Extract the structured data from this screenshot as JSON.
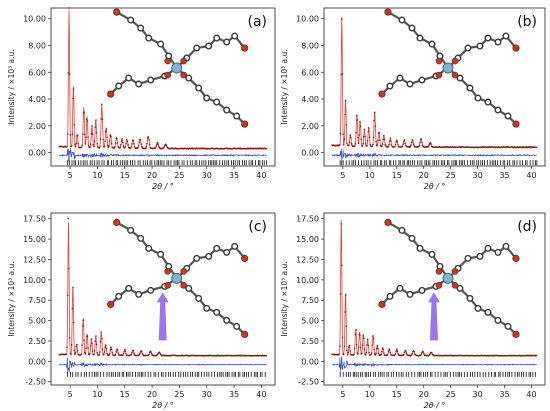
{
  "figure": {
    "colors": {
      "observed": "#8b1a1a",
      "calculated": "#e0443a",
      "difference": "#3a4fd0",
      "bragg": "#111111",
      "atom_carbon": "#3a3a3a",
      "atom_oxygen": "#c0392b",
      "metal": "#7fb4d6",
      "arrow": "#8a5cf0"
    }
  },
  "chart_data": [
    {
      "type": "line",
      "panel_label": "(a)",
      "xlabel": "2θ / °",
      "ylabel": "Intensity / ×10³ a.u.",
      "xlim": [
        1.5,
        42.5
      ],
      "ylim": [
        -1.0,
        10.8
      ],
      "xticks": [
        "5",
        "10",
        "15",
        "20",
        "25",
        "30",
        "35",
        "40"
      ],
      "yticks": [
        "0.00",
        "2.00",
        "4.00",
        "6.00",
        "8.00",
        "10.00"
      ],
      "ytick_values": [
        0,
        2,
        4,
        6,
        8,
        10
      ],
      "background": 0.3,
      "peaks": [
        [
          4.8,
          10.2
        ],
        [
          5.6,
          4.6
        ],
        [
          6.3,
          1.0
        ],
        [
          7.5,
          3.0
        ],
        [
          8.1,
          2.3
        ],
        [
          9.0,
          1.6
        ],
        [
          9.7,
          2.1
        ],
        [
          10.8,
          3.2
        ],
        [
          11.6,
          1.5
        ],
        [
          12.4,
          1.0
        ],
        [
          13.5,
          0.8
        ],
        [
          14.5,
          0.7
        ],
        [
          15.4,
          0.6
        ],
        [
          16.5,
          0.6
        ],
        [
          17.8,
          0.7
        ],
        [
          19.3,
          0.9
        ],
        [
          21.0,
          0.4
        ],
        [
          22.5,
          0.3
        ]
      ],
      "diff_offset": -0.2,
      "bragg_y": -0.75,
      "arrow": false
    },
    {
      "type": "line",
      "panel_label": "(b)",
      "xlabel": "2θ / °",
      "ylabel": "Intensity / ×10³ a.u.",
      "xlim": [
        1.5,
        42.5
      ],
      "ylim": [
        -1.0,
        10.8
      ],
      "xticks": [
        "5",
        "10",
        "15",
        "20",
        "25",
        "30",
        "35",
        "40"
      ],
      "yticks": [
        "0.00",
        "2.00",
        "4.00",
        "6.00",
        "8.00",
        "10.00"
      ],
      "ytick_values": [
        0,
        2,
        4,
        6,
        8,
        10
      ],
      "background": 0.4,
      "peaks": [
        [
          4.8,
          9.6
        ],
        [
          5.5,
          3.4
        ],
        [
          6.4,
          0.8
        ],
        [
          7.6,
          2.4
        ],
        [
          8.2,
          1.9
        ],
        [
          9.0,
          1.2
        ],
        [
          9.8,
          1.4
        ],
        [
          10.9,
          2.6
        ],
        [
          11.7,
          1.1
        ],
        [
          12.6,
          0.8
        ],
        [
          13.8,
          0.6
        ],
        [
          15.0,
          0.5
        ],
        [
          16.4,
          0.5
        ],
        [
          17.9,
          0.5
        ],
        [
          19.5,
          0.6
        ],
        [
          21.2,
          0.3
        ]
      ],
      "diff_offset": -0.2,
      "bragg_y": -0.75,
      "arrow": false
    },
    {
      "type": "line",
      "panel_label": "(c)",
      "xlabel": "2θ / °",
      "ylabel": "Intensity / ×10³ a.u.",
      "xlim": [
        1.5,
        42.5
      ],
      "ylim": [
        -2.9,
        18.2
      ],
      "xticks": [
        "5",
        "10",
        "15",
        "20",
        "25",
        "30",
        "35",
        "40"
      ],
      "yticks": [
        "-2.50",
        "0.00",
        "2.50",
        "5.00",
        "7.50",
        "10.00",
        "12.50",
        "15.00",
        "17.50"
      ],
      "ytick_values": [
        -2.5,
        0,
        2.5,
        5,
        7.5,
        10,
        12.5,
        15,
        17.5
      ],
      "background": 0.7,
      "peaks": [
        [
          4.7,
          16.5
        ],
        [
          5.5,
          8.5
        ],
        [
          6.2,
          1.3
        ],
        [
          7.4,
          4.6
        ],
        [
          8.1,
          2.6
        ],
        [
          8.9,
          2.0
        ],
        [
          9.7,
          2.3
        ],
        [
          10.7,
          2.8
        ],
        [
          11.5,
          1.3
        ],
        [
          12.5,
          1.0
        ],
        [
          13.6,
          0.8
        ],
        [
          15.0,
          0.7
        ],
        [
          16.5,
          0.6
        ],
        [
          18.0,
          0.6
        ],
        [
          19.7,
          0.5
        ],
        [
          21.3,
          0.4
        ]
      ],
      "diff_offset": -0.4,
      "bragg_y": -1.6,
      "arrow": true
    },
    {
      "type": "line",
      "panel_label": "(d)",
      "xlabel": "2θ / °",
      "ylabel": "Intensity / ×10³ a.u.",
      "xlim": [
        1.5,
        42.5
      ],
      "ylim": [
        -2.9,
        18.2
      ],
      "xticks": [
        "5",
        "10",
        "15",
        "20",
        "25",
        "30",
        "35",
        "40"
      ],
      "yticks": [
        "-2.50",
        "0.00",
        "2.50",
        "5.00",
        "7.50",
        "10.00",
        "12.50",
        "15.00",
        "17.50"
      ],
      "ytick_values": [
        -2.5,
        0,
        2.5,
        5,
        7.5,
        10,
        12.5,
        15,
        17.5
      ],
      "background": 0.7,
      "peaks": [
        [
          4.7,
          16.8
        ],
        [
          5.5,
          7.6
        ],
        [
          6.2,
          1.2
        ],
        [
          7.4,
          3.2
        ],
        [
          8.1,
          2.8
        ],
        [
          8.8,
          2.6
        ],
        [
          9.6,
          1.9
        ],
        [
          10.6,
          2.4
        ],
        [
          11.4,
          1.2
        ],
        [
          12.4,
          0.9
        ],
        [
          13.6,
          0.8
        ],
        [
          15.0,
          0.7
        ],
        [
          16.6,
          0.6
        ],
        [
          18.1,
          0.6
        ],
        [
          19.8,
          0.5
        ],
        [
          21.4,
          0.4
        ]
      ],
      "diff_offset": -0.4,
      "bragg_y": -1.6,
      "arrow": true
    }
  ]
}
